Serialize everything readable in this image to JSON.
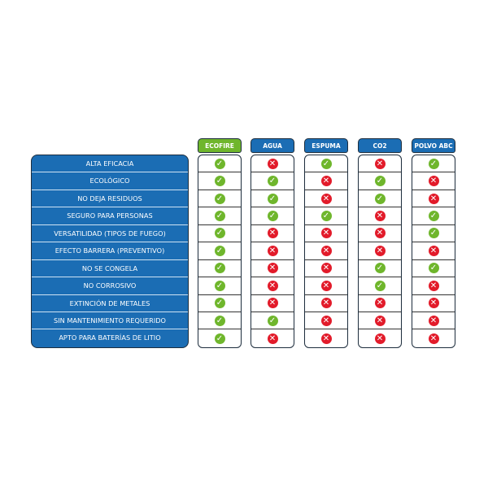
{
  "colors": {
    "label_bg": "#1b6db4",
    "ecofire_header": "#6fb62c",
    "other_header": "#1b6db4",
    "check": "#6fb62c",
    "cross": "#e21b2a"
  },
  "features": [
    "ALTA EFICACIA",
    "ECOLÓGICO",
    "NO DEJA RESIDUOS",
    "SEGURO PARA PERSONAS",
    "VERSATILIDAD (TIPOS DE FUEGO)",
    "EFECTO BARRERA (PREVENTIVO)",
    "NO SE CONGELA",
    "NO CORROSIVO",
    "EXTINCIÓN DE METALES",
    "SIN MANTENIMIENTO REQUERIDO",
    "APTO PARA BATERÍAS DE LITIO"
  ],
  "columns": [
    {
      "name": "ECOFIRE",
      "highlight": true,
      "values": [
        true,
        true,
        true,
        true,
        true,
        true,
        true,
        true,
        true,
        true,
        true
      ]
    },
    {
      "name": "AGUA",
      "highlight": false,
      "values": [
        false,
        true,
        true,
        true,
        false,
        false,
        false,
        false,
        false,
        true,
        false
      ]
    },
    {
      "name": "ESPUMA",
      "highlight": false,
      "values": [
        true,
        false,
        false,
        true,
        false,
        false,
        false,
        false,
        false,
        false,
        false
      ]
    },
    {
      "name": "CO2",
      "highlight": false,
      "values": [
        false,
        true,
        true,
        false,
        false,
        false,
        true,
        true,
        false,
        false,
        false
      ]
    },
    {
      "name": "POLVO ABC",
      "highlight": false,
      "values": [
        true,
        false,
        false,
        true,
        true,
        false,
        true,
        false,
        false,
        false,
        false
      ]
    }
  ]
}
